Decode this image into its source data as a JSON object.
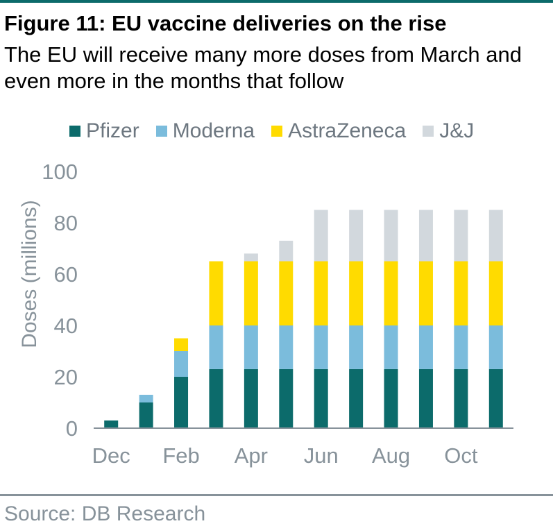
{
  "header": {
    "title": "Figure 11: EU vaccine deliveries on the rise",
    "subtitle": "The EU will receive many more doses from March and even more in the months that follow"
  },
  "footer": {
    "source": "Source: DB Research"
  },
  "colors": {
    "accent_rule": "#0c6b6b",
    "axis_text": "#87929a"
  },
  "chart_data": {
    "type": "bar",
    "stacked": true,
    "categories": [
      "Dec",
      "Jan",
      "Feb",
      "Mar",
      "Apr",
      "May",
      "Jun",
      "Jul",
      "Aug",
      "Sep",
      "Oct",
      "Nov"
    ],
    "x_tick_labels": [
      "Dec",
      "",
      "Feb",
      "",
      "Apr",
      "",
      "Jun",
      "",
      "Aug",
      "",
      "Oct",
      ""
    ],
    "series": [
      {
        "name": "Pfizer",
        "color": "#0c6b6b",
        "values": [
          3,
          10,
          20,
          23,
          23,
          23,
          23,
          23,
          23,
          23,
          23,
          23
        ]
      },
      {
        "name": "Moderna",
        "color": "#7bbcdc",
        "values": [
          0,
          3,
          10,
          17,
          17,
          17,
          17,
          17,
          17,
          17,
          17,
          17
        ]
      },
      {
        "name": "AstraZeneca",
        "color": "#ffdb00",
        "values": [
          0,
          0,
          5,
          25,
          25,
          25,
          25,
          25,
          25,
          25,
          25,
          25
        ]
      },
      {
        "name": "J&J",
        "color": "#d2d8dd",
        "values": [
          0,
          0,
          0,
          0,
          3,
          8,
          20,
          20,
          20,
          20,
          20,
          20
        ]
      }
    ],
    "ylabel": "Doses (millions)",
    "xlabel": "",
    "ylim": [
      0,
      100
    ],
    "yticks": [
      0,
      20,
      40,
      60,
      80,
      100
    ],
    "grid": false,
    "legend_position": "top"
  }
}
